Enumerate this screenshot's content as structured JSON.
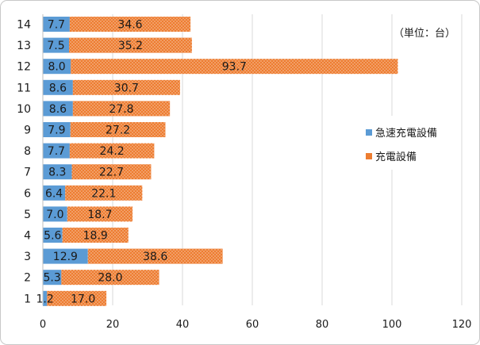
{
  "unit_note": "（単位：台）",
  "legend": [
    {
      "name": "急速充電設備",
      "color": "#5b9bd5"
    },
    {
      "name": "充電設備",
      "color": "#ed7d31"
    }
  ],
  "chart_data": {
    "type": "bar",
    "orientation": "horizontal",
    "stacked": true,
    "title": "",
    "xlabel": "",
    "ylabel": "",
    "categories": [
      "14",
      "13",
      "12",
      "11",
      "10",
      "9",
      "8",
      "7",
      "6",
      "5",
      "4",
      "3",
      "2",
      "1"
    ],
    "series": [
      {
        "name": "急速充電設備",
        "color": "#5b9bd5",
        "values": [
          7.7,
          7.5,
          8.0,
          8.6,
          8.6,
          7.9,
          7.7,
          8.3,
          6.4,
          7.0,
          5.6,
          12.9,
          5.3,
          1.2
        ]
      },
      {
        "name": "充電設備",
        "color": "#ed7d31",
        "pattern": "dotted",
        "values": [
          34.6,
          35.2,
          93.7,
          30.7,
          27.8,
          27.2,
          24.2,
          22.7,
          22.1,
          18.7,
          18.9,
          38.6,
          28.0,
          17.0
        ]
      }
    ],
    "data_labels": [
      [
        "7.7",
        "7.5",
        "8.0",
        "8.6",
        "8.6",
        "7.9",
        "7.7",
        "8.3",
        "6.4",
        "7.0",
        "5.6",
        "12.9",
        "5.3",
        "1.2"
      ],
      [
        "34.6",
        "35.2",
        "93.7",
        "30.7",
        "27.8",
        "27.2",
        "24.2",
        "22.7",
        "22.1",
        "18.7",
        "18.9",
        "38.6",
        "28.0",
        "17.0"
      ]
    ],
    "xlim": [
      0,
      120
    ],
    "xticks": [
      0,
      20,
      40,
      60,
      80,
      100,
      120
    ],
    "xtick_labels": [
      "0",
      "20",
      "40",
      "60",
      "80",
      "100",
      "120"
    ],
    "grid": "vertical",
    "legend_position": "right"
  }
}
